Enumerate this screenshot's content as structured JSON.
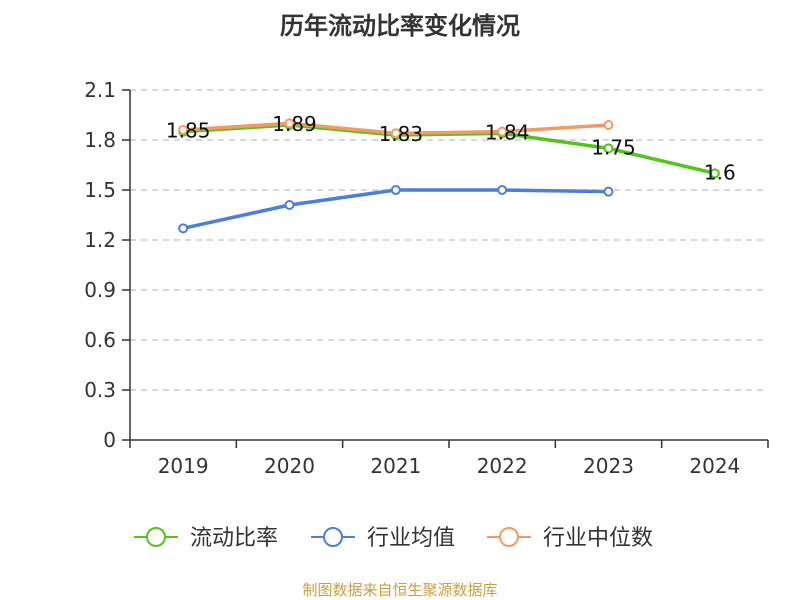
{
  "colors": {
    "current_ratio": "#52c41a",
    "industry_mean": "#4a7fdb",
    "industry_median": "#f39a60",
    "text": "#333333",
    "source": "#c9a043"
  },
  "source": "制图数据来自恒生聚源数据库",
  "chart_data": {
    "type": "line",
    "title": "历年流动比率变化情况",
    "x": [
      "2019",
      "2020",
      "2021",
      "2022",
      "2023",
      "2024"
    ],
    "y_ticks": [
      "0",
      "0.3",
      "0.6",
      "0.9",
      "1.2",
      "1.5",
      "1.8",
      "2.1"
    ],
    "ylim": [
      0,
      2.1
    ],
    "grid": true,
    "legend_position": "bottom",
    "series": [
      {
        "name": "流动比率",
        "values": [
          1.85,
          1.89,
          1.83,
          1.84,
          1.75,
          1.6
        ],
        "labels": [
          "1.85",
          "1.89",
          "1.83",
          "1.84",
          "1.75",
          "1.6"
        ]
      },
      {
        "name": "行业均值",
        "values": [
          1.27,
          1.41,
          1.5,
          1.5,
          1.49,
          null
        ]
      },
      {
        "name": "行业中位数",
        "values": [
          1.86,
          1.9,
          1.84,
          1.85,
          1.89,
          null
        ]
      }
    ]
  }
}
